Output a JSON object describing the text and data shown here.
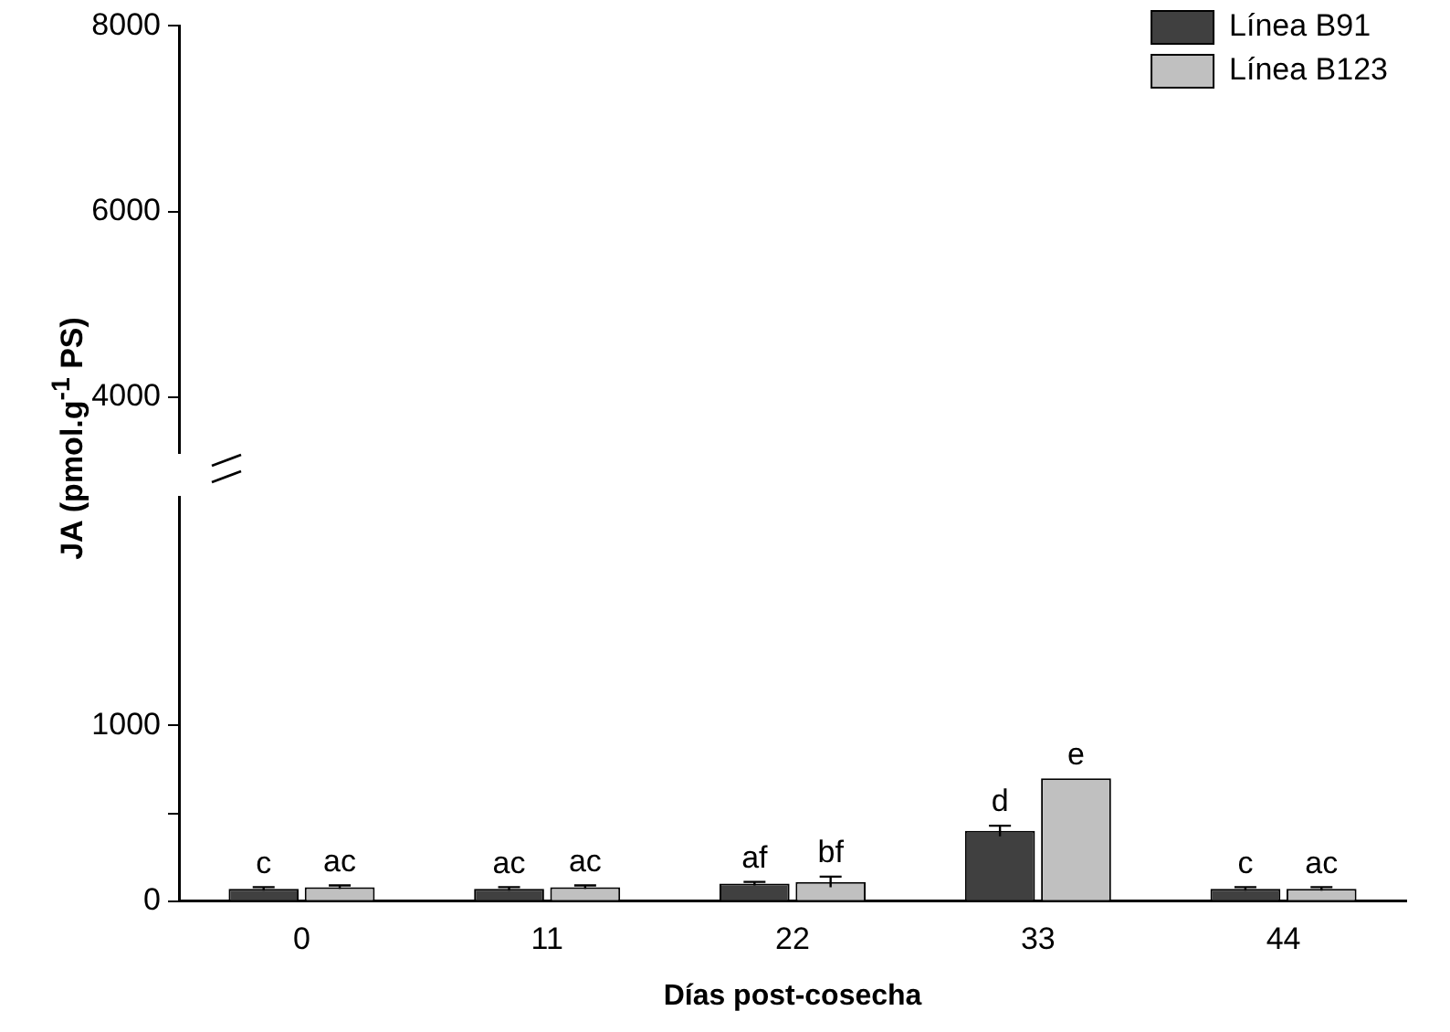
{
  "chart_data": [
    {
      "type": "bar",
      "categories": [
        "0",
        "11",
        "22",
        "33",
        "44"
      ],
      "ylim": [
        3400,
        8000
      ],
      "yticks": [
        4000,
        6000,
        8000
      ],
      "tick_labels": "y",
      "legend": "top right",
      "series": [
        {
          "name": "Línea B91",
          "color": "#404040",
          "values": [
            null,
            null,
            null,
            null,
            null
          ]
        },
        {
          "name": "Línea B123",
          "color": "#c0c0c0",
          "values": [
            null,
            null,
            null,
            null,
            null
          ]
        }
      ]
    },
    {
      "type": "bar",
      "categories": [
        "0",
        "11",
        "22",
        "33",
        "44"
      ],
      "xlabel": "Días post-cosecha",
      "ylabel": "JA (pmol.g$^{-1}$ PS)",
      "ylim": [
        0,
        2300
      ],
      "yticks": [
        0,
        {
          "value": 500,
          "label": null
        },
        1000
      ],
      "series": [
        {
          "color": "#404040",
          "values": [
            70,
            70,
            100,
            400,
            70
          ],
          "errors": [
            10,
            10,
            10,
            30,
            10
          ],
          "value_labels": [
            "c",
            "ac",
            "af",
            "d",
            "c"
          ]
        },
        {
          "color": "#c0c0c0",
          "values": [
            80,
            80,
            110,
            700,
            70
          ],
          "errors": [
            10,
            10,
            30,
            null,
            10
          ],
          "value_labels": [
            "ac",
            "ac",
            "bf",
            "e",
            "ac"
          ]
        }
      ]
    }
  ]
}
